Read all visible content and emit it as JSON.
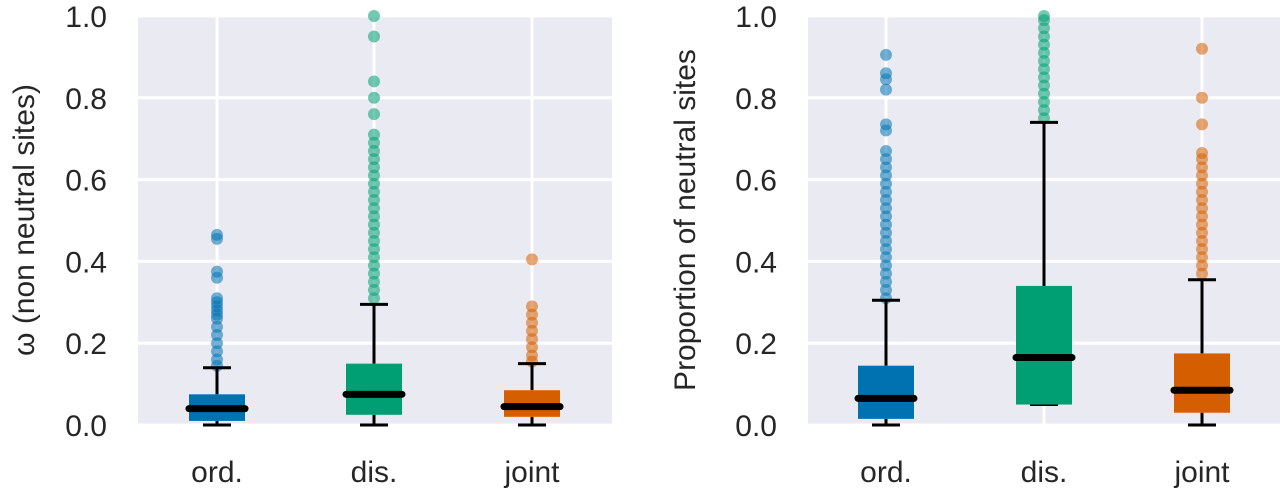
{
  "chart_data": [
    {
      "type": "box",
      "ylabel": "ω (non neutral sites)",
      "ylim": [
        0,
        1
      ],
      "yticks": [
        "0.0",
        "0.2",
        "0.4",
        "0.6",
        "0.8",
        "1.0"
      ],
      "grid": true,
      "categories": [
        "ord.",
        "dis.",
        "joint"
      ],
      "colors": [
        "#0072b2",
        "#009e73",
        "#d55e00"
      ],
      "boxes": [
        {
          "category": "ord.",
          "whisker_low": 0.0,
          "q1": 0.01,
          "median": 0.04,
          "q3": 0.075,
          "whisker_high": 0.14,
          "outliers": [
            0.145,
            0.16,
            0.18,
            0.2,
            0.22,
            0.24,
            0.26,
            0.27,
            0.28,
            0.29,
            0.3,
            0.31,
            0.36,
            0.375,
            0.455,
            0.465
          ]
        },
        {
          "category": "dis.",
          "whisker_low": 0.0,
          "q1": 0.025,
          "median": 0.075,
          "q3": 0.15,
          "whisker_high": 0.295,
          "outliers": [
            0.31,
            0.33,
            0.35,
            0.37,
            0.39,
            0.41,
            0.43,
            0.45,
            0.47,
            0.49,
            0.51,
            0.53,
            0.55,
            0.57,
            0.59,
            0.61,
            0.63,
            0.65,
            0.67,
            0.69,
            0.71,
            0.76,
            0.8,
            0.84,
            0.95,
            1.0
          ]
        },
        {
          "category": "joint",
          "whisker_low": 0.0,
          "q1": 0.02,
          "median": 0.045,
          "q3": 0.085,
          "whisker_high": 0.15,
          "outliers": [
            0.155,
            0.17,
            0.19,
            0.21,
            0.23,
            0.25,
            0.27,
            0.29,
            0.405
          ]
        }
      ]
    },
    {
      "type": "box",
      "ylabel": "Proportion of neutral sites",
      "ylim": [
        0,
        1
      ],
      "yticks": [
        "0.0",
        "0.2",
        "0.4",
        "0.6",
        "0.8",
        "1.0"
      ],
      "grid": true,
      "categories": [
        "ord.",
        "dis.",
        "joint"
      ],
      "colors": [
        "#0072b2",
        "#009e73",
        "#d55e00"
      ],
      "boxes": [
        {
          "category": "ord.",
          "whisker_low": 0.0,
          "q1": 0.015,
          "median": 0.065,
          "q3": 0.145,
          "whisker_high": 0.305,
          "outliers": [
            0.31,
            0.33,
            0.35,
            0.37,
            0.39,
            0.41,
            0.43,
            0.45,
            0.47,
            0.49,
            0.51,
            0.53,
            0.55,
            0.57,
            0.59,
            0.61,
            0.63,
            0.65,
            0.67,
            0.72,
            0.735,
            0.82,
            0.845,
            0.86,
            0.905
          ]
        },
        {
          "category": "dis.",
          "whisker_low": 0.05,
          "q1": 0.05,
          "median": 0.165,
          "q3": 0.34,
          "whisker_high": 0.74,
          "outliers": [
            0.75,
            0.77,
            0.79,
            0.81,
            0.83,
            0.85,
            0.87,
            0.89,
            0.91,
            0.93,
            0.95,
            0.97,
            0.99,
            1.0
          ]
        },
        {
          "category": "joint",
          "whisker_low": 0.0,
          "q1": 0.03,
          "median": 0.085,
          "q3": 0.175,
          "whisker_high": 0.355,
          "outliers": [
            0.37,
            0.39,
            0.41,
            0.43,
            0.45,
            0.47,
            0.49,
            0.51,
            0.53,
            0.55,
            0.57,
            0.59,
            0.61,
            0.63,
            0.65,
            0.665,
            0.735,
            0.8,
            0.92
          ]
        }
      ]
    }
  ]
}
